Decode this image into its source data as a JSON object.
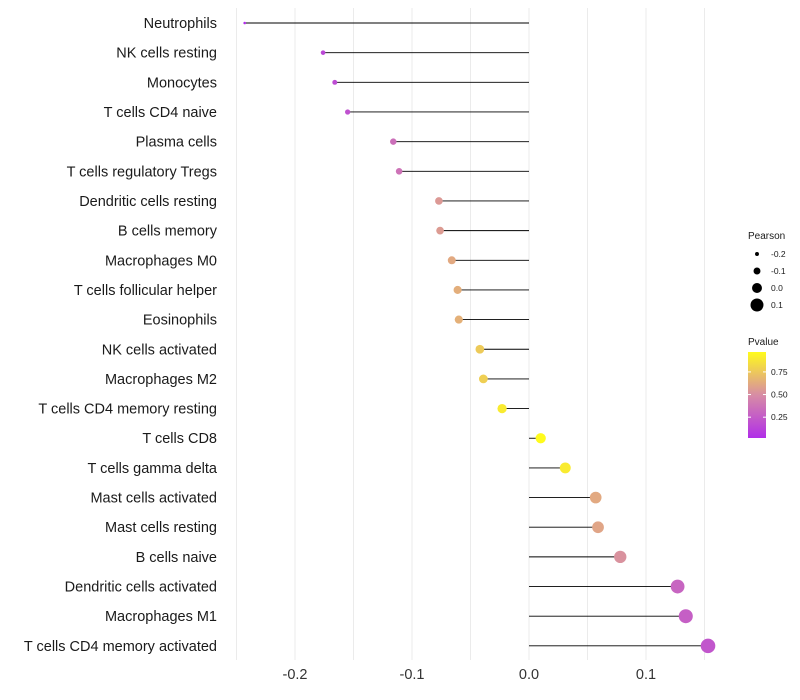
{
  "chart_data": {
    "type": "lollipop",
    "title": "",
    "xlabel": "",
    "ylabel": "",
    "xlim": [
      -0.25,
      0.16
    ],
    "xticks": [
      -0.2,
      -0.1,
      0.0,
      0.1
    ],
    "xtick_labels": [
      "-0.2",
      "-0.1",
      "0.0",
      "0.1"
    ],
    "grid": true,
    "categories": [
      "Neutrophils",
      "NK cells resting",
      "Monocytes",
      "T cells CD4 naive",
      "Plasma cells",
      "T cells regulatory  Tregs",
      "Dendritic cells resting",
      "B cells memory",
      "Macrophages M0",
      "T cells follicular helper",
      "Eosinophils",
      "NK cells activated",
      "Macrophages M2",
      "T cells CD4 memory resting",
      "T cells CD8",
      "T cells gamma delta",
      "Mast cells activated",
      "Mast cells resting",
      "B cells naive",
      "Dendritic cells activated",
      "Macrophages M1",
      "T cells CD4 memory activated"
    ],
    "pearson": [
      -0.243,
      -0.176,
      -0.166,
      -0.155,
      -0.116,
      -0.111,
      -0.077,
      -0.076,
      -0.066,
      -0.061,
      -0.06,
      -0.042,
      -0.039,
      -0.023,
      0.01,
      0.031,
      0.057,
      0.059,
      0.078,
      0.127,
      0.134,
      0.153
    ],
    "pvalue": [
      0.02,
      0.15,
      0.17,
      0.2,
      0.35,
      0.37,
      0.55,
      0.56,
      0.62,
      0.64,
      0.65,
      0.76,
      0.78,
      0.9,
      0.97,
      0.9,
      0.62,
      0.6,
      0.52,
      0.3,
      0.27,
      0.22
    ],
    "size_legend": {
      "title": "Pearson",
      "labels": [
        "-0.2",
        "-0.1",
        "0.0",
        "0.1"
      ],
      "values": [
        -0.2,
        -0.1,
        0.0,
        0.1
      ]
    },
    "color_legend": {
      "title": "Pvalue",
      "labels": [
        "0.75",
        "0.50",
        "0.25"
      ],
      "values": [
        0.75,
        0.5,
        0.25
      ],
      "range": [
        0.02,
        0.97
      ],
      "low_color": "#b12ee8",
      "mid_color": "#d78ca5",
      "high_color": "#fffb1c"
    },
    "stem_color": "#000000",
    "grid_color": "#ebebeb"
  }
}
